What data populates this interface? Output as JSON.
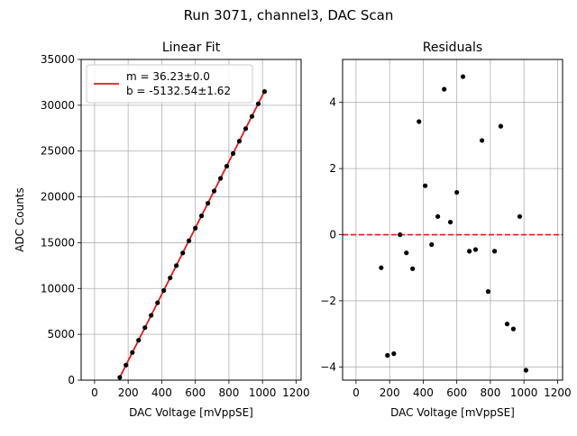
{
  "figure": {
    "suptitle": "Run 3071, channel3, DAC Scan"
  },
  "chart_data": [
    {
      "type": "scatter",
      "title": "Linear Fit",
      "xlabel": "DAC Voltage [mVppSE]",
      "ylabel": "ADC Counts",
      "xlim": [
        -80,
        1230
      ],
      "ylim": [
        0,
        35000
      ],
      "xticks": [
        0,
        200,
        400,
        600,
        800,
        1000,
        1200
      ],
      "yticks": [
        0,
        5000,
        10000,
        15000,
        20000,
        25000,
        30000,
        35000
      ],
      "grid": true,
      "legend": {
        "placement": "top-left",
        "line1": "m = 36.23±0.0",
        "line2": "b = -5132.54±1.62"
      },
      "fit_line": {
        "color": "#e41a1c",
        "slope": 36.23,
        "intercept": -5132.54,
        "x_range": [
          150,
          1012
        ]
      },
      "series": [
        {
          "color": "#000000",
          "x": [
            150,
            187,
            225,
            262,
            300,
            337,
            375,
            412,
            450,
            487,
            525,
            562,
            600,
            637,
            675,
            712,
            750,
            787,
            825,
            862,
            900,
            937,
            975,
            1012
          ],
          "y": [
            301,
            1642,
            3018,
            4356,
            5733,
            7070,
            8446,
            9784,
            11161,
            12502,
            13878,
            15216,
            16593,
            17932,
            19305,
            20644,
            22021,
            23358,
            24736,
            26079,
            27446,
            28786,
            30165,
            31499
          ]
        }
      ]
    },
    {
      "type": "scatter",
      "title": "Residuals",
      "xlabel": "DAC Voltage [mVppSE]",
      "ylabel": "",
      "xlim": [
        -80,
        1230
      ],
      "ylim": [
        -4.4,
        5.3
      ],
      "xticks": [
        0,
        200,
        400,
        600,
        800,
        1000,
        1200
      ],
      "yticks": [
        -4,
        -2,
        0,
        2,
        4
      ],
      "grid": true,
      "zero_line": {
        "color": "#e41a1c",
        "y": 0
      },
      "series": [
        {
          "color": "#000000",
          "x": [
            150,
            187,
            225,
            262,
            300,
            337,
            375,
            412,
            450,
            487,
            525,
            562,
            600,
            637,
            675,
            712,
            750,
            787,
            825,
            862,
            900,
            937,
            975,
            1012
          ],
          "y": [
            -1.0,
            -3.65,
            -3.6,
            0.0,
            -0.55,
            -1.03,
            3.42,
            1.48,
            -0.3,
            0.55,
            4.4,
            0.38,
            1.28,
            4.78,
            -0.5,
            -0.45,
            2.85,
            -1.72,
            -0.5,
            3.28,
            -2.7,
            -2.85,
            0.55,
            -4.1
          ]
        }
      ]
    }
  ]
}
